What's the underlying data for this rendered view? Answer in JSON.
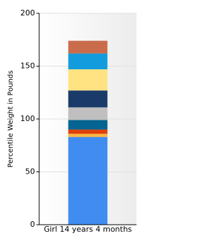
{
  "chart_data": {
    "type": "stacked-bar",
    "y_label": "Percentile Weight in Pounds",
    "categories": [
      "Girl 14 years 4 months"
    ],
    "series": [
      {
        "color": "#418cf0",
        "values": [
          83
        ]
      },
      {
        "color": "#fcb441",
        "values": [
          3
        ]
      },
      {
        "color": "#e0400a",
        "values": [
          4
        ]
      },
      {
        "color": "#056492",
        "values": [
          9
        ]
      },
      {
        "color": "#bfbfbf",
        "values": [
          12
        ]
      },
      {
        "color": "#1a3b69",
        "values": [
          16
        ]
      },
      {
        "color": "#ffe382",
        "values": [
          20
        ]
      },
      {
        "color": "#129cdd",
        "values": [
          15
        ]
      },
      {
        "color": "#ca6b4b",
        "values": [
          12
        ]
      }
    ],
    "ylim": [
      0,
      200
    ],
    "yticks": [
      0,
      50,
      100,
      150,
      200
    ],
    "grid": true
  }
}
